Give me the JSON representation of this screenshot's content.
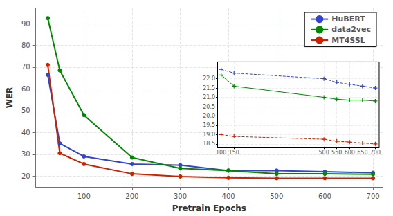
{
  "chart_data": [
    {
      "type": "line",
      "x": [
        25,
        50,
        100,
        200,
        300,
        400,
        500,
        600,
        700
      ],
      "series": [
        {
          "name": "HuBERT",
          "color": "#3344cc",
          "values": [
            66.5,
            35.0,
            29.0,
            25.5,
            25.0,
            22.5,
            22.5,
            22.0,
            21.5
          ],
          "line_style": "solid"
        },
        {
          "name": "data2vec",
          "color": "#008800",
          "values": [
            92.5,
            68.5,
            48.0,
            28.5,
            23.5,
            22.5,
            21.0,
            21.0,
            20.8
          ],
          "line_style": "solid"
        },
        {
          "name": "MT4SSL",
          "color": "#cc2200",
          "values": [
            71.0,
            30.5,
            25.5,
            21.0,
            19.8,
            19.2,
            19.0,
            19.0,
            19.0
          ],
          "line_style": "solid"
        }
      ],
      "marker": "circle",
      "x_label": "Pretrain Epochs",
      "y_label": "WER",
      "xlim": [
        0,
        720
      ],
      "xticks": [
        100,
        200,
        300,
        400,
        500,
        600,
        700
      ],
      "ylim": [
        15,
        97
      ],
      "yticks": [
        20,
        30,
        40,
        50,
        60,
        70,
        80,
        90
      ],
      "grid": true,
      "legend": "upper right"
    },
    {
      "type": "line",
      "x": [
        100,
        150,
        500,
        550,
        600,
        650,
        700
      ],
      "series": [
        {
          "name": "HuBERT",
          "color": "#3344cc",
          "values": [
            22.5,
            22.3,
            22.0,
            21.8,
            21.7,
            21.6,
            21.5
          ],
          "line_style": "dashed"
        },
        {
          "name": "data2vec",
          "color": "#008800",
          "values": [
            22.2,
            21.6,
            21.0,
            20.9,
            20.85,
            20.85,
            20.8
          ],
          "line_style": "solid"
        },
        {
          "name": "MT4SSL",
          "color": "#cc2200",
          "values": [
            19.0,
            18.9,
            18.75,
            18.65,
            18.6,
            18.55,
            18.5
          ],
          "line_style": "dashed"
        }
      ],
      "marker": "plus",
      "xlim": [
        85,
        715
      ],
      "xticks": [
        100,
        150,
        500,
        550,
        600,
        650,
        700
      ],
      "ylim": [
        18.3,
        22.9
      ],
      "yticks": [
        18.5,
        {
          "value": 19.0,
          "label": "19.0"
        },
        19.5,
        {
          "value": 20.0,
          "label": "20.0"
        },
        20.5,
        {
          "value": 21.0,
          "label": "21.0"
        },
        21.5,
        {
          "value": 22.0,
          "label": "22.0"
        }
      ],
      "grid": true
    }
  ]
}
